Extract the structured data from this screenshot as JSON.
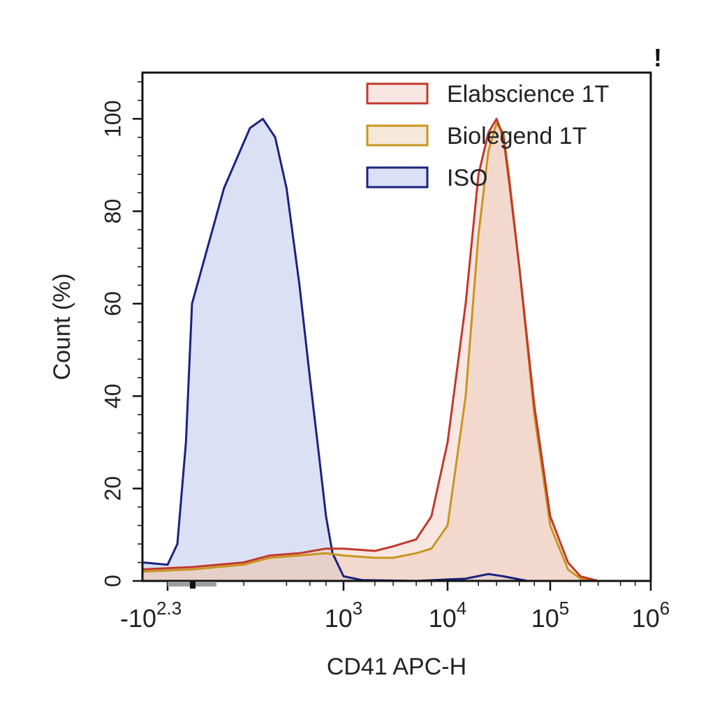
{
  "corner_mark": "!",
  "chart_data": {
    "type": "area",
    "xlabel": "CD41 APC-H",
    "ylabel": "Count  (%)",
    "x_scale": "biexponential",
    "x_tick_labels": [
      {
        "base": "-10",
        "exp": "2.3",
        "value": -200
      },
      {
        "base": "10",
        "exp": "3",
        "value": 1000
      },
      {
        "base": "10",
        "exp": "4",
        "value": 10000
      },
      {
        "base": "10",
        "exp": "5",
        "value": 100000
      },
      {
        "base": "10",
        "exp": "6",
        "value": 1000000
      }
    ],
    "y_ticks": [
      "0",
      "20",
      "40",
      "60",
      "80",
      "100"
    ],
    "ylim": [
      0,
      110
    ],
    "legend_position": "top-right",
    "grid": false,
    "series": [
      {
        "name": "Elabscience 1T",
        "color": "#c0392b",
        "fill": "rgba(240,200,190,0.45)",
        "points": [
          [
            -250,
            2.5
          ],
          [
            0,
            3
          ],
          [
            100,
            4
          ],
          [
            200,
            5.5
          ],
          [
            400,
            6
          ],
          [
            700,
            7
          ],
          [
            1000,
            7
          ],
          [
            2000,
            6.5
          ],
          [
            3000,
            7.5
          ],
          [
            5000,
            9
          ],
          [
            7000,
            14
          ],
          [
            10000,
            30
          ],
          [
            15000,
            60
          ],
          [
            20000,
            88
          ],
          [
            25000,
            97
          ],
          [
            30000,
            100
          ],
          [
            35000,
            96
          ],
          [
            40000,
            86
          ],
          [
            50000,
            68
          ],
          [
            70000,
            38
          ],
          [
            100000,
            14
          ],
          [
            150000,
            4
          ],
          [
            200000,
            1
          ],
          [
            300000,
            0
          ],
          [
            1000000,
            0
          ]
        ]
      },
      {
        "name": "Biolegend 1T",
        "color": "#c8951e",
        "fill": "rgba(235,205,170,0.45)",
        "points": [
          [
            -250,
            2
          ],
          [
            0,
            2.5
          ],
          [
            100,
            3.5
          ],
          [
            200,
            5
          ],
          [
            400,
            5.5
          ],
          [
            700,
            6
          ],
          [
            1000,
            5.5
          ],
          [
            2000,
            5
          ],
          [
            3000,
            5
          ],
          [
            5000,
            6
          ],
          [
            7000,
            7
          ],
          [
            10000,
            12
          ],
          [
            15000,
            40
          ],
          [
            20000,
            75
          ],
          [
            25000,
            93
          ],
          [
            30000,
            99
          ],
          [
            35000,
            97
          ],
          [
            40000,
            87
          ],
          [
            50000,
            68
          ],
          [
            70000,
            36
          ],
          [
            100000,
            12
          ],
          [
            150000,
            2.5
          ],
          [
            200000,
            0.5
          ],
          [
            300000,
            0
          ],
          [
            1000000,
            0
          ]
        ]
      },
      {
        "name": "ISO",
        "color": "#1a237e",
        "fill": "rgba(190,198,235,0.55)",
        "points": [
          [
            -250,
            4
          ],
          [
            -200,
            3.5
          ],
          [
            -120,
            8
          ],
          [
            -50,
            30
          ],
          [
            0,
            60
          ],
          [
            50,
            85
          ],
          [
            120,
            98
          ],
          [
            170,
            100
          ],
          [
            230,
            96
          ],
          [
            300,
            85
          ],
          [
            400,
            64
          ],
          [
            500,
            44
          ],
          [
            600,
            28
          ],
          [
            700,
            14
          ],
          [
            800,
            6
          ],
          [
            1000,
            1
          ],
          [
            1500,
            0.2
          ],
          [
            5000,
            0
          ],
          [
            15000,
            0.5
          ],
          [
            25000,
            1.5
          ],
          [
            35000,
            1
          ],
          [
            60000,
            0
          ],
          [
            1000000,
            0
          ]
        ]
      }
    ]
  }
}
